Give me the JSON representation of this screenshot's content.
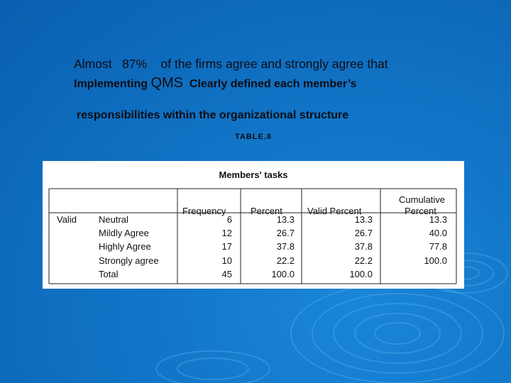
{
  "slide": {
    "line1": "Almost   87%    of the firms agree and strongly agree that",
    "line2_prefix": "Implementing ",
    "line2_qms": "QMS",
    "line2_suffix": "  Clearly defined each member’s",
    "line3": "responsibilities within the organizational structure",
    "caption": "TABLE.8"
  },
  "table": {
    "title": "Members' tasks",
    "headers": {
      "frequency": "Frequency",
      "percent": "Percent",
      "valid_percent": "Valid Percent",
      "cumulative_line1": "Cumulative",
      "cumulative_line2": "Percent"
    },
    "group_label": "Valid",
    "rows": [
      {
        "label": "Neutral",
        "frequency": "6",
        "percent": "13.3",
        "valid_percent": "13.3",
        "cumulative": "13.3"
      },
      {
        "label": "Mildly Agree",
        "frequency": "12",
        "percent": "26.7",
        "valid_percent": "26.7",
        "cumulative": "40.0"
      },
      {
        "label": "Highly Agree",
        "frequency": "17",
        "percent": "37.8",
        "valid_percent": "37.8",
        "cumulative": "77.8"
      },
      {
        "label": "Strongly agree",
        "frequency": "10",
        "percent": "22.2",
        "valid_percent": "22.2",
        "cumulative": "100.0"
      },
      {
        "label": "Total",
        "frequency": "45",
        "percent": "100.0",
        "valid_percent": "100.0",
        "cumulative": ""
      }
    ]
  },
  "colors": {
    "background": "#1276c8",
    "text": "#0d0d14",
    "panel": "#ffffff"
  }
}
